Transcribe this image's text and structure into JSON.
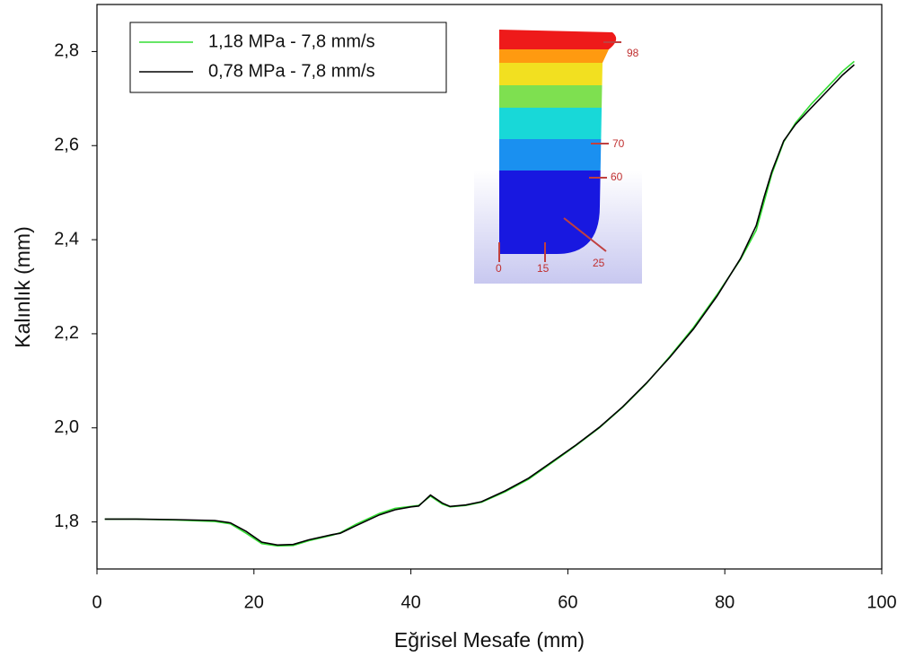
{
  "chart_data": {
    "type": "line",
    "xlabel": "Eğrisel Mesafe (mm)",
    "ylabel": "Kalınlık (mm)",
    "xlim": [
      0,
      100
    ],
    "xticks": [
      0,
      20,
      40,
      60,
      80,
      100
    ],
    "ylim": [
      1.7,
      2.9
    ],
    "yticks": [
      {
        "value": 1.8,
        "label": "1,8"
      },
      {
        "value": 2.0,
        "label": "2,0"
      },
      {
        "value": 2.2,
        "label": "2,2"
      },
      {
        "value": 2.4,
        "label": "2,4"
      },
      {
        "value": 2.6,
        "label": "2,6"
      },
      {
        "value": 2.8,
        "label": "2,8"
      }
    ],
    "legend": "upper left",
    "series": [
      {
        "name": "1,18 MPa - 7,8 mm/s",
        "color": "#33dd33",
        "x": [
          1,
          5,
          10,
          15,
          17,
          19,
          21,
          23,
          25,
          27,
          30,
          31,
          33,
          36,
          38,
          40,
          41,
          42.5,
          44,
          45,
          47,
          49,
          52,
          55,
          58,
          61,
          64,
          67,
          70,
          73,
          76,
          79,
          82,
          84,
          85,
          86,
          87.5,
          89,
          91,
          93,
          95,
          96.5
        ],
        "values": [
          1.806,
          1.806,
          1.804,
          1.801,
          1.796,
          1.776,
          1.754,
          1.749,
          1.75,
          1.76,
          1.772,
          1.777,
          1.795,
          1.818,
          1.829,
          1.833,
          1.835,
          1.855,
          1.838,
          1.832,
          1.835,
          1.842,
          1.864,
          1.891,
          1.926,
          1.962,
          2.0,
          2.044,
          2.094,
          2.152,
          2.213,
          2.283,
          2.358,
          2.42,
          2.48,
          2.54,
          2.608,
          2.648,
          2.688,
          2.723,
          2.758,
          2.779
        ]
      },
      {
        "name": "0,78 MPa - 7,8 mm/s",
        "color": "#000000",
        "x": [
          1,
          5,
          10,
          15,
          17,
          19,
          21,
          23,
          25,
          27,
          30,
          31,
          33,
          36,
          38,
          40,
          41,
          42.5,
          44,
          45,
          47,
          49,
          52,
          55,
          58,
          61,
          64,
          67,
          70,
          73,
          76,
          79,
          82,
          84,
          85,
          86,
          87.5,
          89,
          91,
          93,
          95,
          96.5
        ],
        "values": [
          1.806,
          1.806,
          1.805,
          1.803,
          1.798,
          1.78,
          1.757,
          1.751,
          1.752,
          1.762,
          1.773,
          1.776,
          1.792,
          1.815,
          1.826,
          1.832,
          1.834,
          1.857,
          1.84,
          1.833,
          1.836,
          1.843,
          1.866,
          1.893,
          1.928,
          1.963,
          2.001,
          2.045,
          2.095,
          2.15,
          2.21,
          2.28,
          2.36,
          2.43,
          2.49,
          2.545,
          2.61,
          2.645,
          2.68,
          2.715,
          2.75,
          2.772
        ]
      }
    ],
    "inset_labels": [
      "98",
      "70",
      "60",
      "0",
      "15",
      "25"
    ]
  }
}
